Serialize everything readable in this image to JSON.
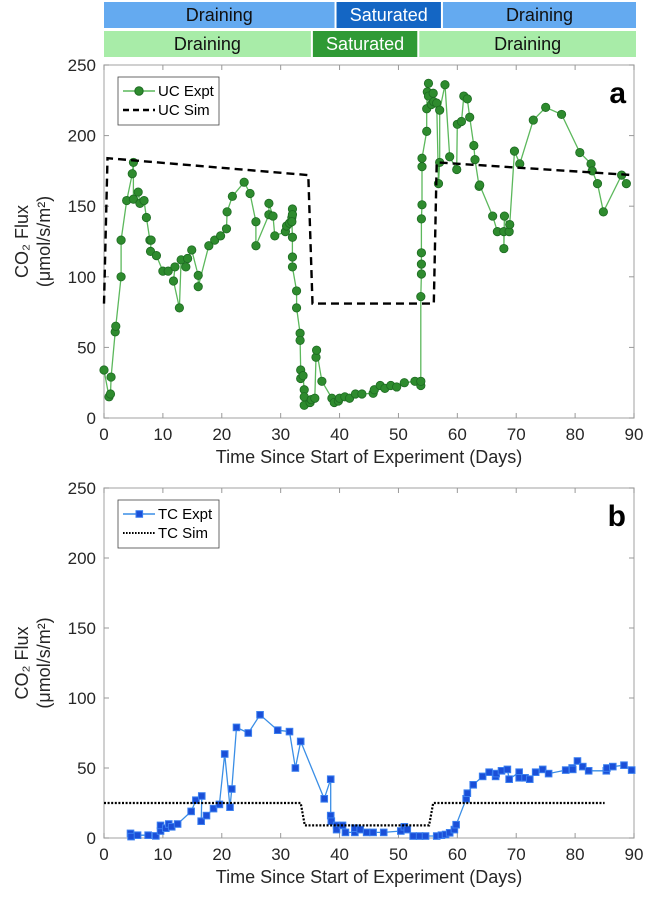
{
  "bands": {
    "top": {
      "color_light": "#64aaf0",
      "color_dark": "#1466c4",
      "segments": [
        {
          "label": "Draining",
          "start": 0,
          "end": 39,
          "dark": false
        },
        {
          "label": "Saturated",
          "start": 39,
          "end": 57,
          "dark": true
        },
        {
          "label": "Draining",
          "start": 57,
          "end": 90,
          "dark": false
        }
      ]
    },
    "bottom": {
      "color_light": "#a8eca8",
      "color_dark": "#2f9a35",
      "segments": [
        {
          "label": "Draining",
          "start": 0,
          "end": 35,
          "dark": false
        },
        {
          "label": "Saturated",
          "start": 35,
          "end": 53,
          "dark": true
        },
        {
          "label": "Draining",
          "start": 53,
          "end": 90,
          "dark": false
        }
      ]
    }
  },
  "chart_data": [
    {
      "type": "line",
      "panel_label": "a",
      "xlabel": "Time Since Start of Experiment (Days)",
      "ylabel_line1": "CO₂ Flux",
      "ylabel_line2": "(μmol/s/m²)",
      "xlim": [
        0,
        90
      ],
      "ylim": [
        0,
        250
      ],
      "xticks": [
        0,
        10,
        20,
        30,
        40,
        50,
        60,
        70,
        80,
        90
      ],
      "yticks": [
        0,
        50,
        100,
        150,
        200,
        250
      ],
      "legend_position": "top-left",
      "series": [
        {
          "name": "UC Expt",
          "style": "line-circle",
          "color": "#2e8b2e",
          "line_color": "#5cb85c",
          "x": [
            0,
            0.85,
            1.1,
            1.2,
            1.9,
            2.0,
            2.9,
            2.9,
            3.85,
            4.8,
            5.0,
            5.0,
            5.8,
            6.1,
            6.8,
            7.2,
            7.8,
            8.0,
            7.9,
            8.9,
            10.0,
            10.9,
            12.05,
            11.8,
            12.8,
            13.1,
            13.9,
            14.2,
            14.9,
            16.0,
            16.0,
            17.8,
            18.8,
            19.8,
            20.8,
            20.9,
            21.8,
            23.8,
            24.8,
            25.8,
            25.8,
            28.0,
            28.0,
            28.7,
            29.0,
            30.8,
            31.0,
            31.5,
            31.9,
            32.0,
            32.0,
            31.9,
            32.0,
            32.0,
            32.0,
            32.7,
            32.7,
            33.3,
            33.3,
            33.4,
            33.4,
            33.8,
            34.0,
            34.0,
            34.0,
            35.0,
            35.2,
            35.8,
            36.0,
            36.1,
            37.0,
            38.7,
            39.1,
            39.8,
            40.0,
            40.9,
            41.7,
            42.7,
            43.8,
            45.7,
            45.9,
            46.9,
            47.7,
            48.7,
            49.7,
            51.0,
            52.8,
            53.8,
            53.8,
            53.8,
            53.9,
            53.9,
            53.9,
            53.9,
            54.0,
            54.0,
            54.0,
            54.8,
            54.8,
            54.9,
            55.1,
            55.1,
            55.6,
            55.9,
            56.0,
            56.5,
            56.8,
            57.0,
            57.0,
            57.9,
            58.7,
            59.9,
            60.0,
            60.7,
            61.1,
            61.7,
            62.1,
            62.8,
            63.0,
            63.7,
            63.8,
            66.0,
            66.8,
            67.9,
            67.9,
            68.0,
            68.8,
            68.9,
            69.7,
            70.6,
            72.9,
            75.0,
            77.7,
            80.8,
            82.7,
            82.9,
            83.8,
            84.8,
            87.9,
            88.7
          ],
          "y": [
            34,
            15,
            17,
            29,
            61,
            65,
            100,
            126,
            154,
            173,
            181,
            155,
            160,
            152,
            154,
            142,
            126,
            126,
            118,
            115,
            104,
            104,
            107,
            97,
            78,
            112,
            107,
            113,
            119,
            101,
            93,
            122,
            126,
            129,
            134,
            146,
            157,
            167,
            159,
            139,
            122,
            144,
            152,
            143,
            129,
            132,
            136,
            138,
            142,
            148,
            144,
            139,
            128,
            114,
            107,
            90,
            78,
            60,
            55,
            34,
            28,
            30,
            20,
            15,
            9,
            11,
            13,
            14,
            43,
            48,
            26,
            14,
            11,
            12,
            14,
            15,
            14,
            17,
            17,
            17.5,
            20,
            23,
            21,
            23,
            22,
            25,
            26,
            23,
            26,
            86,
            102,
            109,
            117,
            141,
            151,
            178,
            184,
            203,
            219,
            231,
            237,
            228,
            222,
            230,
            224,
            223,
            166,
            181,
            218,
            236,
            185,
            176,
            208,
            210,
            228,
            226,
            213,
            193,
            183,
            164,
            165,
            143,
            132,
            132,
            120,
            143,
            132,
            137,
            189,
            180,
            211,
            220,
            215,
            188,
            180,
            175,
            166,
            146,
            172,
            166
          ]
        },
        {
          "name": "UC Sim",
          "style": "dashed",
          "color": "#000000",
          "x": [
            0,
            0.6,
            34.7,
            35.4,
            56.0,
            56.5,
            89.8
          ],
          "y": [
            81,
            184,
            172,
            81,
            81,
            181,
            172
          ]
        }
      ]
    },
    {
      "type": "line",
      "panel_label": "b",
      "xlabel": "Time Since Start of Experiment (Days)",
      "ylabel_line1": "CO₂ Flux",
      "ylabel_line2": "(μmol/s/m²)",
      "xlim": [
        0,
        90
      ],
      "ylim": [
        0,
        250
      ],
      "xticks": [
        0,
        10,
        20,
        30,
        40,
        50,
        60,
        70,
        80,
        90
      ],
      "yticks": [
        0,
        50,
        100,
        150,
        200,
        250
      ],
      "legend_position": "top-left",
      "series": [
        {
          "name": "TC Expt",
          "style": "line-square",
          "color": "#1a4fd8",
          "line_color": "#3a8ee6",
          "x": [
            4.5,
            4.6,
            5.7,
            7.5,
            8.8,
            9.6,
            9.6,
            10.5,
            11.0,
            11.5,
            12.5,
            14.8,
            15.6,
            16.6,
            16.5,
            17.4,
            18.6,
            19.6,
            20.5,
            21.4,
            21.7,
            22.5,
            24.5,
            26.5,
            29.5,
            31.5,
            32.5,
            33.4,
            37.4,
            38.5,
            38.5,
            38.6,
            39.5,
            39.5,
            40.5,
            41.0,
            42.6,
            42.6,
            43.5,
            44.6,
            45.7,
            47.5,
            50.4,
            51.0,
            51.5,
            52.5,
            53.6,
            54.6,
            56.5,
            57.3,
            58.0,
            58.7,
            59.5,
            59.8,
            61.5,
            61.7,
            62.7,
            64.3,
            65.4,
            66.5,
            66.6,
            67.5,
            68.5,
            68.8,
            70.5,
            70.5,
            71.5,
            72.3,
            73.3,
            74.5,
            75.5,
            78.4,
            79.5,
            79.6,
            80.4,
            81.3,
            82.3,
            85.3,
            85.4,
            86.4,
            88.3,
            89.6
          ],
          "y": [
            3.3,
            1,
            2,
            2,
            1.5,
            5,
            9,
            7,
            10,
            8,
            10,
            19,
            27,
            30,
            12,
            16,
            21,
            24,
            60,
            22,
            35,
            79,
            75,
            88,
            77,
            76,
            50,
            69,
            28,
            42,
            16,
            12,
            9,
            6,
            9,
            4,
            4,
            7,
            6,
            4,
            4,
            4,
            5,
            8,
            6,
            1.4,
            1.4,
            1.4,
            1.4,
            2,
            2.5,
            3.7,
            6,
            9.5,
            28,
            32,
            38,
            44,
            47,
            44,
            46,
            48,
            49,
            42,
            47,
            43,
            43,
            42,
            47,
            49,
            46,
            48.5,
            50,
            49,
            55,
            51,
            48,
            48,
            50,
            51,
            52,
            48.5
          ]
        },
        {
          "name": "TC Sim",
          "style": "dotted",
          "color": "#000000",
          "x": [
            0,
            33.4,
            34.1,
            55.2,
            55.9,
            85
          ],
          "y": [
            25,
            25,
            9,
            9,
            25,
            25
          ]
        }
      ]
    }
  ]
}
